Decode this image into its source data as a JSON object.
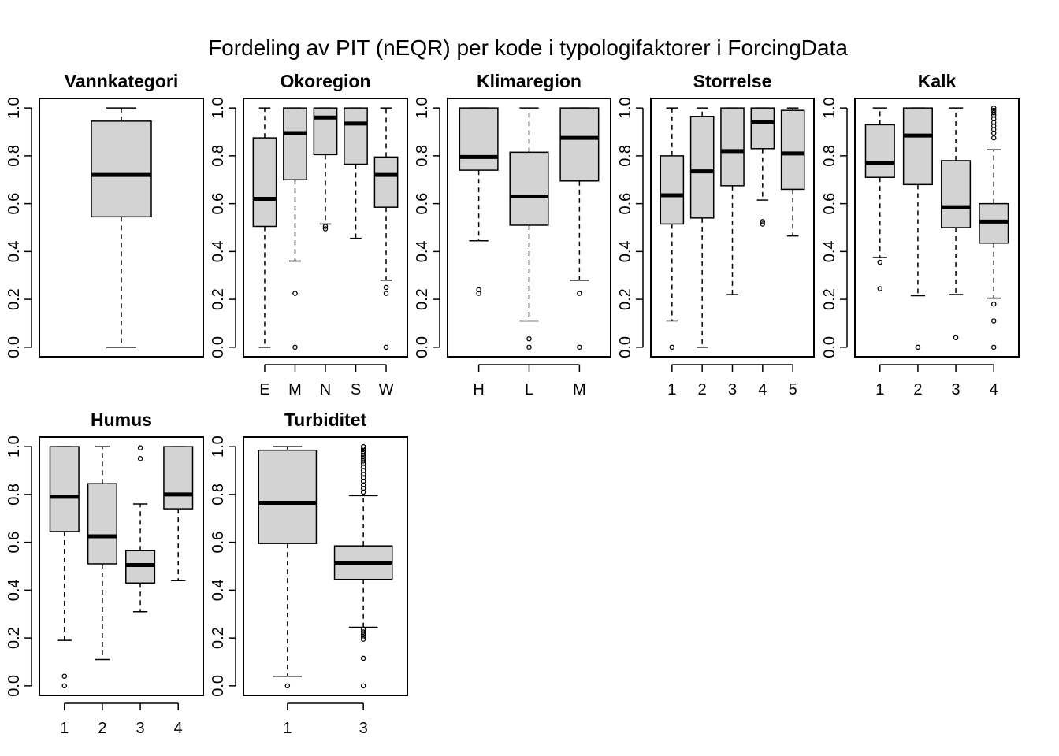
{
  "title": "Fordeling av PIT (nEQR) per kode i typologifaktorer i ForcingData",
  "colors": {
    "box_fill": "#d3d3d3",
    "stroke": "#000000"
  },
  "chart_data": [
    {
      "type": "boxplot",
      "title": "Vannkategori",
      "ylim": [
        0,
        1
      ],
      "yticks": [
        "0.0",
        "0.2",
        "0.4",
        "0.6",
        "0.8",
        "1.0"
      ],
      "categories": [
        ""
      ],
      "boxes": [
        {
          "whisker_low": 0.0,
          "q1": 0.545,
          "median": 0.72,
          "q3": 0.945,
          "whisker_high": 1.0,
          "outliers": []
        }
      ]
    },
    {
      "type": "boxplot",
      "title": "Okoregion",
      "ylim": [
        0,
        1
      ],
      "yticks": [
        "0.0",
        "0.2",
        "0.4",
        "0.6",
        "0.8",
        "1.0"
      ],
      "categories": [
        "E",
        "M",
        "N",
        "S",
        "W"
      ],
      "boxes": [
        {
          "whisker_low": 0.0,
          "q1": 0.505,
          "median": 0.62,
          "q3": 0.875,
          "whisker_high": 1.0,
          "outliers": []
        },
        {
          "whisker_low": 0.36,
          "q1": 0.7,
          "median": 0.895,
          "q3": 1.0,
          "whisker_high": 1.0,
          "outliers": [
            0.225,
            0.0
          ]
        },
        {
          "whisker_low": 0.515,
          "q1": 0.805,
          "median": 0.96,
          "q3": 1.0,
          "whisker_high": 1.0,
          "outliers": [
            0.505,
            0.495
          ]
        },
        {
          "whisker_low": 0.455,
          "q1": 0.765,
          "median": 0.935,
          "q3": 1.0,
          "whisker_high": 1.0,
          "outliers": []
        },
        {
          "whisker_low": 0.28,
          "q1": 0.585,
          "median": 0.72,
          "q3": 0.795,
          "whisker_high": 1.0,
          "outliers": [
            0.25,
            0.225,
            0.0
          ]
        }
      ]
    },
    {
      "type": "boxplot",
      "title": "Klimaregion",
      "ylim": [
        0,
        1
      ],
      "yticks": [
        "0.0",
        "0.2",
        "0.4",
        "0.6",
        "0.8",
        "1.0"
      ],
      "categories": [
        "H",
        "L",
        "M"
      ],
      "boxes": [
        {
          "whisker_low": 0.445,
          "q1": 0.74,
          "median": 0.795,
          "q3": 1.0,
          "whisker_high": 1.0,
          "outliers": [
            0.24,
            0.225
          ]
        },
        {
          "whisker_low": 0.11,
          "q1": 0.51,
          "median": 0.63,
          "q3": 0.815,
          "whisker_high": 1.0,
          "outliers": [
            0.035,
            0.0
          ]
        },
        {
          "whisker_low": 0.28,
          "q1": 0.695,
          "median": 0.875,
          "q3": 1.0,
          "whisker_high": 1.0,
          "outliers": [
            0.225,
            0.0
          ]
        }
      ]
    },
    {
      "type": "boxplot",
      "title": "Storrelse",
      "ylim": [
        0,
        1
      ],
      "yticks": [
        "0.0",
        "0.2",
        "0.4",
        "0.6",
        "0.8",
        "1.0"
      ],
      "categories": [
        "1",
        "2",
        "3",
        "4",
        "5"
      ],
      "boxes": [
        {
          "whisker_low": 0.11,
          "q1": 0.515,
          "median": 0.635,
          "q3": 0.8,
          "whisker_high": 1.0,
          "outliers": [
            0.0
          ]
        },
        {
          "whisker_low": 0.0,
          "q1": 0.54,
          "median": 0.735,
          "q3": 0.965,
          "whisker_high": 1.0,
          "outliers": []
        },
        {
          "whisker_low": 0.22,
          "q1": 0.675,
          "median": 0.82,
          "q3": 1.0,
          "whisker_high": 1.0,
          "outliers": []
        },
        {
          "whisker_low": 0.615,
          "q1": 0.83,
          "median": 0.94,
          "q3": 1.0,
          "whisker_high": 1.0,
          "outliers": [
            0.525,
            0.515
          ]
        },
        {
          "whisker_low": 0.465,
          "q1": 0.66,
          "median": 0.81,
          "q3": 0.99,
          "whisker_high": 1.0,
          "outliers": []
        }
      ]
    },
    {
      "type": "boxplot",
      "title": "Kalk",
      "ylim": [
        0,
        1
      ],
      "yticks": [
        "0.0",
        "0.2",
        "0.4",
        "0.6",
        "0.8",
        "1.0"
      ],
      "categories": [
        "1",
        "2",
        "3",
        "4"
      ],
      "boxes": [
        {
          "whisker_low": 0.375,
          "q1": 0.71,
          "median": 0.77,
          "q3": 0.93,
          "whisker_high": 1.0,
          "outliers": [
            0.355,
            0.245
          ]
        },
        {
          "whisker_low": 0.215,
          "q1": 0.68,
          "median": 0.885,
          "q3": 1.0,
          "whisker_high": 1.0,
          "outliers": [
            0.0
          ]
        },
        {
          "whisker_low": 0.22,
          "q1": 0.5,
          "median": 0.585,
          "q3": 0.78,
          "whisker_high": 1.0,
          "outliers": [
            0.04
          ]
        },
        {
          "whisker_low": 0.205,
          "q1": 0.435,
          "median": 0.525,
          "q3": 0.6,
          "whisker_high": 0.825,
          "outliers": [
            1.0,
            0.99,
            0.98,
            0.97,
            0.955,
            0.94,
            0.925,
            0.91,
            0.895,
            0.875,
            0.18,
            0.11,
            0.0
          ]
        }
      ]
    },
    {
      "type": "boxplot",
      "title": "Humus",
      "ylim": [
        0,
        1
      ],
      "yticks": [
        "0.0",
        "0.2",
        "0.4",
        "0.6",
        "0.8",
        "1.0"
      ],
      "categories": [
        "1",
        "2",
        "3",
        "4"
      ],
      "boxes": [
        {
          "whisker_low": 0.19,
          "q1": 0.645,
          "median": 0.79,
          "q3": 1.0,
          "whisker_high": 1.0,
          "outliers": [
            0.04,
            0.0
          ]
        },
        {
          "whisker_low": 0.11,
          "q1": 0.51,
          "median": 0.625,
          "q3": 0.845,
          "whisker_high": 1.0,
          "outliers": []
        },
        {
          "whisker_low": 0.31,
          "q1": 0.43,
          "median": 0.505,
          "q3": 0.565,
          "whisker_high": 0.76,
          "outliers": [
            0.995,
            0.95
          ]
        },
        {
          "whisker_low": 0.44,
          "q1": 0.74,
          "median": 0.8,
          "q3": 1.0,
          "whisker_high": 1.0,
          "outliers": []
        }
      ]
    },
    {
      "type": "boxplot",
      "title": "Turbiditet",
      "ylim": [
        0,
        1
      ],
      "yticks": [
        "0.0",
        "0.2",
        "0.4",
        "0.6",
        "0.8",
        "1.0"
      ],
      "categories": [
        "1",
        "3"
      ],
      "boxes": [
        {
          "whisker_low": 0.04,
          "q1": 0.595,
          "median": 0.765,
          "q3": 0.985,
          "whisker_high": 1.0,
          "outliers": [
            0.0
          ]
        },
        {
          "whisker_low": 0.245,
          "q1": 0.445,
          "median": 0.515,
          "q3": 0.585,
          "whisker_high": 0.795,
          "outliers": [
            1.0,
            0.99,
            0.98,
            0.97,
            0.96,
            0.95,
            0.94,
            0.93,
            0.915,
            0.9,
            0.885,
            0.87,
            0.855,
            0.84,
            0.825,
            0.81,
            0.235,
            0.225,
            0.215,
            0.205,
            0.195,
            0.115,
            0.0
          ]
        }
      ]
    }
  ]
}
